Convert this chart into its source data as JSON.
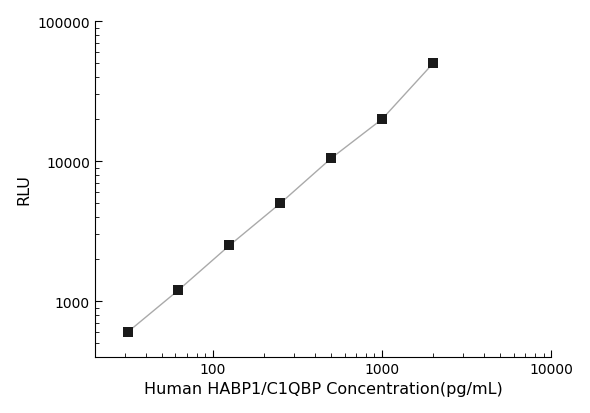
{
  "x_values": [
    31.25,
    62.5,
    125,
    250,
    500,
    1000,
    2000
  ],
  "y_values": [
    600,
    1200,
    2500,
    5000,
    10500,
    20000,
    50000
  ],
  "xlim": [
    20,
    10000
  ],
  "ylim": [
    400,
    100000
  ],
  "xlabel": "Human HABP1/C1QBP Concentration(pg/mL)",
  "ylabel": "RLU",
  "line_color": "#aaaaaa",
  "marker_color": "#1a1a1a",
  "marker_size": 7,
  "background_color": "#ffffff",
  "xlabel_fontsize": 11.5,
  "ylabel_fontsize": 11.5,
  "tick_fontsize": 10,
  "ytick_labels": [
    1000,
    10000,
    100000
  ],
  "xtick_labels": [
    100,
    1000,
    10000
  ]
}
